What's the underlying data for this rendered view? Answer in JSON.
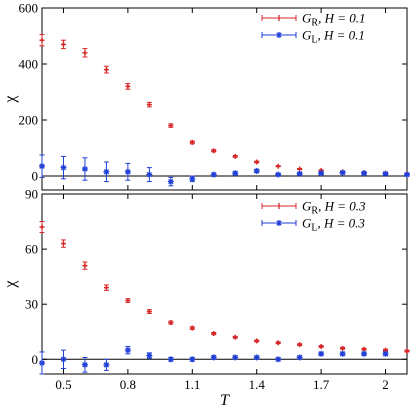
{
  "chart_data": [
    {
      "type": "scatter",
      "xlabel": "",
      "ylabel": "χ",
      "xlim": [
        0.4,
        2.1
      ],
      "ylim": [
        -50,
        600
      ],
      "yticks": [
        0,
        200,
        400,
        600
      ],
      "ytick_labels": [
        "0",
        "200",
        "400",
        "600"
      ],
      "xticks": [
        0.5,
        0.8,
        1.1,
        1.4,
        1.7,
        2.0
      ],
      "show_xtick_labels": false,
      "zero_line": true,
      "grid": false,
      "legend_position": "top-right",
      "series": [
        {
          "name": "G",
          "name_sub": "R",
          "name_suffix": ", H = 0.1",
          "marker": "plus",
          "color": "#d62728",
          "x": [
            0.4,
            0.5,
            0.6,
            0.7,
            0.8,
            0.9,
            1.0,
            1.1,
            1.2,
            1.3,
            1.4,
            1.5,
            1.6,
            1.7,
            1.8,
            1.9,
            2.0,
            2.1
          ],
          "y": [
            485,
            470,
            440,
            380,
            320,
            255,
            180,
            120,
            90,
            70,
            50,
            35,
            25,
            20,
            15,
            12,
            10,
            8
          ],
          "err": [
            20,
            15,
            15,
            12,
            10,
            8,
            6,
            5,
            4,
            3,
            3,
            2,
            2,
            2,
            2,
            2,
            2,
            2
          ]
        },
        {
          "name": "G",
          "name_sub": "L",
          "name_suffix": ", H = 0.1",
          "marker": "star",
          "color": "#1f3fd6",
          "x": [
            0.4,
            0.5,
            0.6,
            0.7,
            0.8,
            0.9,
            1.0,
            1.1,
            1.2,
            1.3,
            1.4,
            1.5,
            1.6,
            1.7,
            1.8,
            1.9,
            2.0,
            2.1
          ],
          "y": [
            35,
            30,
            25,
            15,
            15,
            5,
            -20,
            -10,
            5,
            10,
            18,
            5,
            8,
            10,
            12,
            10,
            8,
            5
          ],
          "err": [
            40,
            40,
            40,
            35,
            30,
            25,
            15,
            10,
            6,
            5,
            5,
            4,
            4,
            4,
            4,
            4,
            4,
            4
          ]
        }
      ]
    },
    {
      "type": "scatter",
      "xlabel": "T",
      "ylabel": "χ",
      "xlim": [
        0.4,
        2.1
      ],
      "ylim": [
        -8,
        90
      ],
      "yticks": [
        0,
        30,
        60,
        90
      ],
      "ytick_labels": [
        "0",
        "30",
        "60",
        "90"
      ],
      "xticks": [
        0.5,
        0.8,
        1.1,
        1.4,
        1.7,
        2.0
      ],
      "xtick_labels": [
        "0.5",
        "0.8",
        "1.1",
        "1.4",
        "1.7",
        "2"
      ],
      "show_xtick_labels": true,
      "zero_line": true,
      "grid": false,
      "legend_position": "top-right",
      "series": [
        {
          "name": "G",
          "name_sub": "R",
          "name_suffix": ", H = 0.3",
          "marker": "plus",
          "color": "#d62728",
          "x": [
            0.4,
            0.5,
            0.6,
            0.7,
            0.8,
            0.9,
            1.0,
            1.1,
            1.2,
            1.3,
            1.4,
            1.5,
            1.6,
            1.7,
            1.8,
            1.9,
            2.0,
            2.1
          ],
          "y": [
            72,
            63,
            51,
            39,
            32,
            26,
            20,
            17,
            14,
            12,
            10,
            9,
            8,
            7,
            6,
            5.5,
            5,
            4.5
          ],
          "err": [
            3,
            2,
            2,
            1.5,
            1,
            1,
            0.8,
            0.7,
            0.6,
            0.5,
            0.5,
            0.5,
            0.5,
            0.5,
            0.5,
            0.5,
            0.5,
            0.5
          ]
        },
        {
          "name": "G",
          "name_sub": "L",
          "name_suffix": ", H = 0.3",
          "marker": "star",
          "color": "#1f3fd6",
          "x": [
            0.4,
            0.5,
            0.6,
            0.7,
            0.8,
            0.9,
            1.0,
            1.1,
            1.2,
            1.3,
            1.4,
            1.5,
            1.6,
            1.7,
            1.8,
            1.9,
            2.0
          ],
          "y": [
            -2,
            0,
            -3,
            -3,
            5,
            2,
            0,
            0,
            1,
            1,
            1,
            0,
            1,
            3,
            3,
            3,
            3
          ],
          "err": [
            6,
            5,
            4,
            3,
            2,
            1.5,
            1,
            1,
            1,
            0.8,
            0.8,
            0.8,
            0.8,
            0.8,
            0.8,
            0.8,
            0.8
          ]
        }
      ]
    }
  ]
}
